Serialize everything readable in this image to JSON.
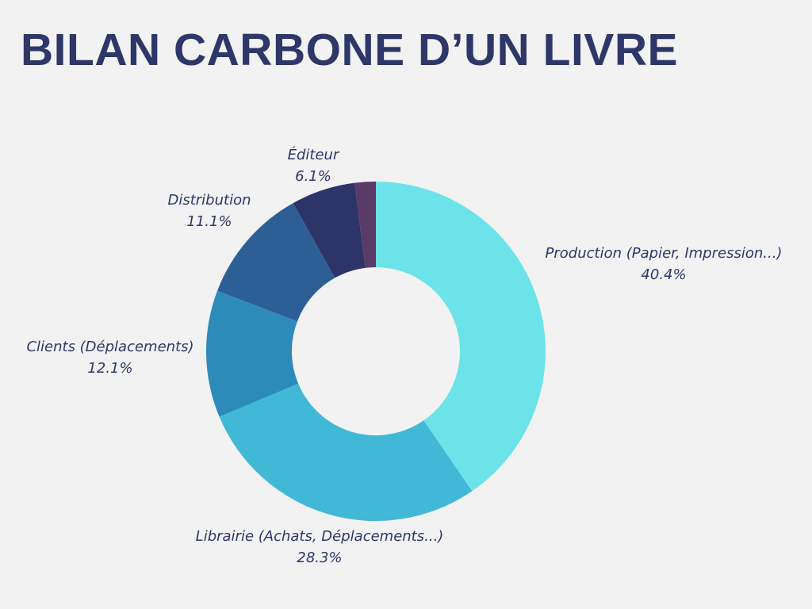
{
  "chart_data": {
    "type": "pie",
    "variant": "donut",
    "title": "BILAN CARBONE D’UN LIVRE",
    "categories": [
      "Production (Papier, Impression...)",
      "Librairie (Achats, Déplacements...)",
      "Clients (Déplacements)",
      "Distribution",
      "Éditeur",
      ""
    ],
    "values": [
      40.4,
      28.3,
      12.1,
      11.1,
      6.1,
      2.0
    ],
    "value_labels": [
      "40.4%",
      "28.3%",
      "12.1%",
      "11.1%",
      "6.1%",
      ""
    ],
    "colors": [
      "#6ce3e8",
      "#42b8d7",
      "#2d8bb9",
      "#2d5f97",
      "#2d3468",
      "#5a3a66"
    ],
    "legend": "none",
    "label_placement": "outside"
  }
}
